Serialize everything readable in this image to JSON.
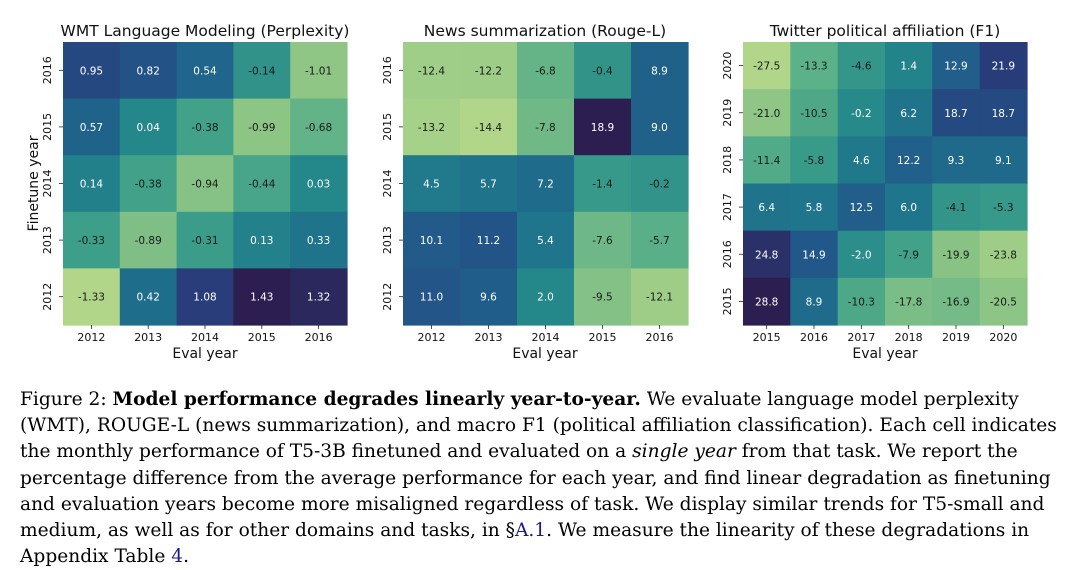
{
  "chart_data": [
    {
      "type": "heatmap",
      "title": "WMT Language Modeling (Perplexity)",
      "xlabel": "Eval year",
      "ylabel": "Finetune year",
      "x_ticks": [
        "2012",
        "2013",
        "2014",
        "2015",
        "2016"
      ],
      "y_ticks": [
        "2016",
        "2015",
        "2014",
        "2013",
        "2012"
      ],
      "values": [
        [
          0.95,
          0.82,
          0.54,
          -0.14,
          -1.01
        ],
        [
          0.57,
          0.04,
          -0.38,
          -0.99,
          -0.68
        ],
        [
          0.14,
          -0.38,
          -0.94,
          -0.44,
          0.03
        ],
        [
          -0.33,
          -0.89,
          -0.31,
          0.13,
          0.33
        ],
        [
          -1.33,
          0.42,
          1.08,
          1.43,
          1.32
        ]
      ],
      "labels": [
        [
          "0.95",
          "0.82",
          "0.54",
          "-0.14",
          "-1.01"
        ],
        [
          "0.57",
          "0.04",
          "-0.38",
          "-0.99",
          "-0.68"
        ],
        [
          "0.14",
          "-0.38",
          "-0.94",
          "-0.44",
          "0.03"
        ],
        [
          "-0.33",
          "-0.89",
          "-0.31",
          "0.13",
          "0.33"
        ],
        [
          "-1.33",
          "0.42",
          "1.08",
          "1.43",
          "1.32"
        ]
      ],
      "colormap": "crest"
    },
    {
      "type": "heatmap",
      "title": "News summarization (Rouge-L)",
      "xlabel": "Eval year",
      "ylabel": "",
      "x_ticks": [
        "2012",
        "2013",
        "2014",
        "2015",
        "2016"
      ],
      "y_ticks": [
        "2016",
        "2015",
        "2014",
        "2013",
        "2012"
      ],
      "values": [
        [
          -12.4,
          -12.2,
          -6.8,
          -0.4,
          8.9
        ],
        [
          -13.2,
          -14.4,
          -7.8,
          18.9,
          9.0
        ],
        [
          4.5,
          5.7,
          7.2,
          -1.4,
          -0.2
        ],
        [
          10.1,
          11.2,
          5.4,
          -7.6,
          -5.7
        ],
        [
          11.0,
          9.6,
          2.0,
          -9.5,
          -12.1
        ]
      ],
      "labels": [
        [
          "-12.4",
          "-12.2",
          "-6.8",
          "-0.4",
          "8.9"
        ],
        [
          "-13.2",
          "-14.4",
          "-7.8",
          "18.9",
          "9.0"
        ],
        [
          "4.5",
          "5.7",
          "7.2",
          "-1.4",
          "-0.2"
        ],
        [
          "10.1",
          "11.2",
          "5.4",
          "-7.6",
          "-5.7"
        ],
        [
          "11.0",
          "9.6",
          "2.0",
          "-9.5",
          "-12.1"
        ]
      ],
      "colormap": "crest"
    },
    {
      "type": "heatmap",
      "title": "Twitter political affiliation (F1)",
      "xlabel": "Eval year",
      "ylabel": "",
      "x_ticks": [
        "2015",
        "2016",
        "2017",
        "2018",
        "2019",
        "2020"
      ],
      "y_ticks": [
        "2020",
        "2019",
        "2018",
        "2017",
        "2016",
        "2015"
      ],
      "values": [
        [
          -27.5,
          -13.3,
          -4.6,
          1.4,
          12.9,
          21.9
        ],
        [
          -21.0,
          -10.5,
          -0.2,
          6.2,
          18.7,
          18.7
        ],
        [
          -11.4,
          -5.8,
          4.6,
          12.2,
          9.3,
          9.1
        ],
        [
          6.4,
          5.8,
          12.5,
          6.0,
          -4.1,
          -5.3
        ],
        [
          24.8,
          14.9,
          -2.0,
          -7.9,
          -19.9,
          -23.8
        ],
        [
          28.8,
          8.9,
          -10.3,
          -17.8,
          -16.9,
          -20.5
        ]
      ],
      "labels": [
        [
          "-27.5",
          "-13.3",
          "-4.6",
          "1.4",
          "12.9",
          "21.9"
        ],
        [
          "-21.0",
          "-10.5",
          "-0.2",
          "6.2",
          "18.7",
          "18.7"
        ],
        [
          "-11.4",
          "-5.8",
          "4.6",
          "12.2",
          "9.3",
          "9.1"
        ],
        [
          "6.4",
          "5.8",
          "12.5",
          "6.0",
          "-4.1",
          "-5.3"
        ],
        [
          "24.8",
          "14.9",
          "-2.0",
          "-7.9",
          "-19.9",
          "-23.8"
        ],
        [
          "28.8",
          "8.9",
          "-10.3",
          "-17.8",
          "-16.9",
          "-20.5"
        ]
      ],
      "colormap": "crest"
    }
  ],
  "caption": {
    "label": "Figure 2:",
    "bold": "Model performance degrades linearly year-to-year.",
    "text_1": "We evaluate language model perplexity (WMT), ROUGE-L (news summarization), and macro F1 (political affiliation classification). Each cell indicates the monthly performance of T5-3B finetuned and evaluated on a",
    "italic": "single year",
    "text_2": "from that task. We report the percentage difference from the average performance for each year, and find linear degradation as finetuning and evaluation years become more misaligned regardless of task. We display similar trends for T5-small and medium, as well as for other domains and tasks, in §",
    "ref_1": "A.1",
    "text_3": ". We measure the linearity of these degradations in Appendix Table",
    "ref_2": "4",
    "text_4": "."
  },
  "colors": {
    "crest_stops": [
      "#2c1e50",
      "#283d7a",
      "#22588a",
      "#1e6f8b",
      "#23868a",
      "#3a9c89",
      "#5cb188",
      "#8cc585",
      "#b1d68a"
    ]
  }
}
